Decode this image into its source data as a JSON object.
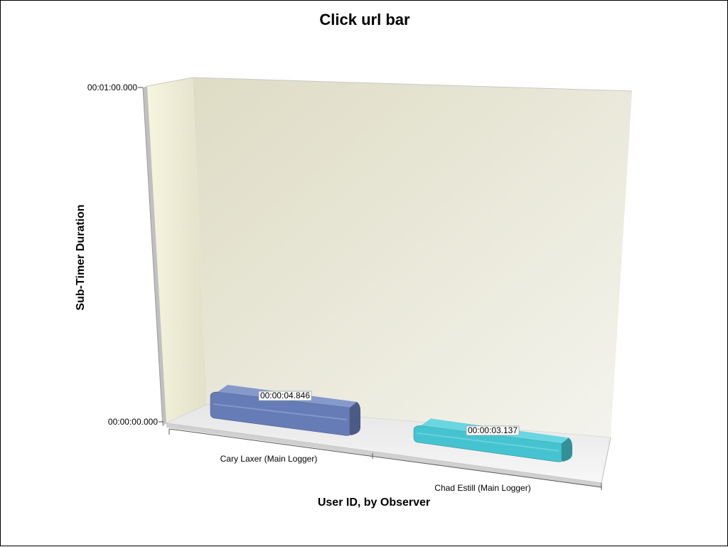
{
  "chart_data": {
    "type": "bar",
    "title": "Click url bar",
    "xlabel": "User ID, by Observer",
    "ylabel": "Sub-Timer Duration",
    "categories": [
      "Cary Laxer (Main Logger)",
      "Chad Estill (Main Logger)"
    ],
    "values": [
      4.846,
      3.137
    ],
    "value_labels": [
      "00:00:04.846",
      "00:00:03.137"
    ],
    "ylim": [
      0,
      60
    ],
    "y_ticks": [
      {
        "value": 0,
        "label": "00:00:00.000"
      },
      {
        "value": 60,
        "label": "00:01:00.000"
      }
    ],
    "colors": [
      "#6b82c0",
      "#49cddb"
    ],
    "grid": true,
    "legend": "none",
    "style": "3d"
  }
}
